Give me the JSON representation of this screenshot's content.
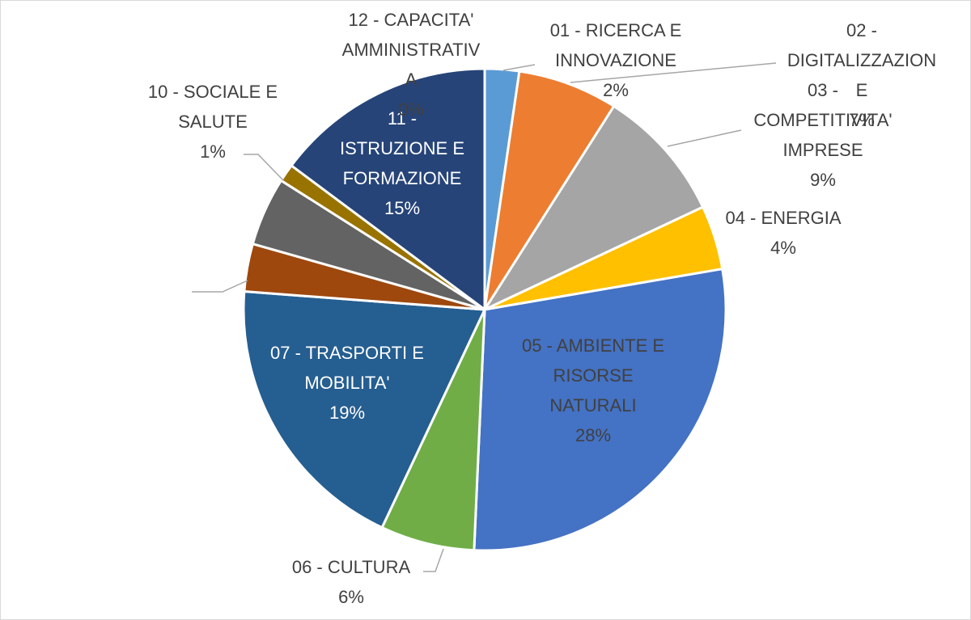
{
  "chart_data": {
    "type": "pie",
    "title": "",
    "start_angle_deg": 0,
    "direction": "clockwise",
    "slices": [
      {
        "label_lines": [
          "01 - RICERCA E",
          "INNOVAZIONE"
        ],
        "value": 2.3,
        "percent_label": "2%",
        "color": "#5b9bd5",
        "label_color": "#404040"
      },
      {
        "label_lines": [
          "02 -",
          "DIGITALIZZAZION",
          "E"
        ],
        "value": 6.7,
        "percent_label": "7%",
        "color": "#ed7d31",
        "label_color": "#404040"
      },
      {
        "label_lines": [
          "03 -",
          "COMPETITIVITA'",
          "IMPRESE"
        ],
        "value": 9.0,
        "percent_label": "9%",
        "color": "#a5a5a5",
        "label_color": "#404040"
      },
      {
        "label_lines": [
          "04 - ENERGIA"
        ],
        "value": 4.3,
        "percent_label": "4%",
        "color": "#ffc000",
        "label_color": "#404040"
      },
      {
        "label_lines": [
          "05 - AMBIENTE E",
          "RISORSE",
          "NATURALI"
        ],
        "value": 28.4,
        "percent_label": "28%",
        "color": "#4472c4",
        "label_color": "#404040"
      },
      {
        "label_lines": [
          "06 - CULTURA"
        ],
        "value": 6.3,
        "percent_label": "6%",
        "color": "#70ad47",
        "label_color": "#404040"
      },
      {
        "label_lines": [
          "07 - TRASPORTI E",
          "MOBILITA'"
        ],
        "value": 19.2,
        "percent_label": "19%",
        "color": "#255e91",
        "label_color": "#ffffff"
      },
      {
        "label_lines": [],
        "value": 3.2,
        "percent_label": "",
        "color": "#9e480e",
        "label_color": "#404040"
      },
      {
        "label_lines": [],
        "value": 4.6,
        "percent_label": "",
        "color": "#636363",
        "label_color": "#404040"
      },
      {
        "label_lines": [
          "10 - SOCIALE E",
          "SALUTE"
        ],
        "value": 1.2,
        "percent_label": "1%",
        "color": "#997300",
        "label_color": "#404040"
      },
      {
        "label_lines": [
          "11 -",
          "ISTRUZIONE E",
          "FORMAZIONE"
        ],
        "value": 14.8,
        "percent_label": "15%",
        "color": "#264478",
        "label_color": "#ffffff"
      },
      {
        "label_lines": [
          "12 - CAPACITA'",
          "AMMINISTRATIV",
          "A"
        ],
        "value": 0.0,
        "percent_label": "0%",
        "color": "#43682b",
        "label_color": "#404040"
      }
    ]
  }
}
